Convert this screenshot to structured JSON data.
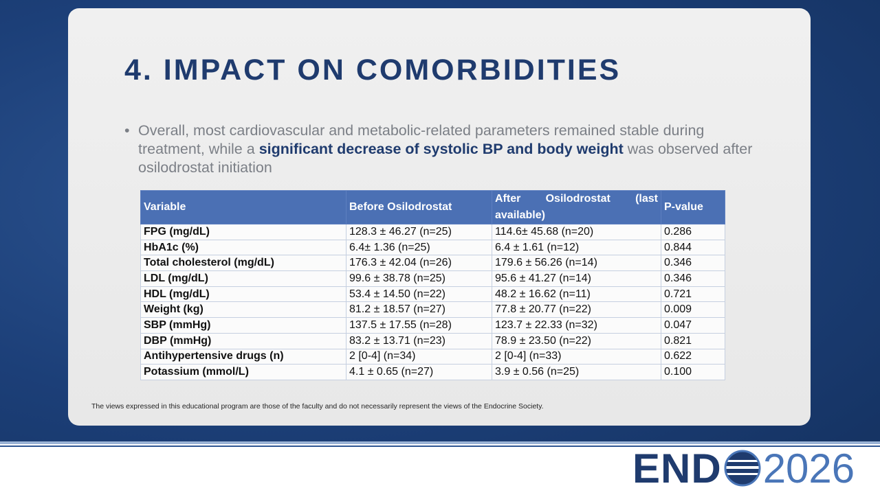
{
  "slide": {
    "title": "4. IMPACT ON COMORBIDITIES",
    "bullet": {
      "before": "Overall, most cardiovascular and metabolic-related parameters remained stable during treatment, while a",
      "bold": "significant decrease of systolic BP and body weight",
      "after": "was observed after osilodrostat initiation"
    },
    "table": {
      "headers": [
        "Variable",
        "Before Osilodrostat",
        "After Osilodrostat (last available)",
        "P-value"
      ],
      "rows": [
        [
          "FPG (mg/dL)",
          "128.3 ± 46.27 (n=25)",
          "114.6± 45.68 (n=20)",
          "0.286"
        ],
        [
          "HbA1c (%)",
          "6.4± 1.36 (n=25)",
          "6.4 ± 1.61 (n=12)",
          "0.844"
        ],
        [
          "Total cholesterol (mg/dL)",
          "176.3 ± 42.04 (n=26)",
          "179.6 ± 56.26 (n=14)",
          "0.346"
        ],
        [
          "LDL (mg/dL)",
          "99.6 ± 38.78 (n=25)",
          "95.6 ± 41.27 (n=14)",
          "0.346"
        ],
        [
          "HDL (mg/dL)",
          "53.4 ± 14.50 (n=22)",
          "48.2 ± 16.62 (n=11)",
          "0.721"
        ],
        [
          "Weight (kg)",
          "81.2 ± 18.57 (n=27)",
          "77.8 ± 20.77 (n=22)",
          "0.009"
        ],
        [
          "SBP (mmHg)",
          "137.5 ± 17.55 (n=28)",
          "123.7 ± 22.33 (n=32)",
          "0.047"
        ],
        [
          "DBP (mmHg)",
          "83.2 ± 13.71 (n=23)",
          "78.9 ± 23.50 (n=22)",
          "0.821"
        ],
        [
          "Antihypertensive drugs (n)",
          "2 [0-4] (n=34)",
          "2 [0-4] (n=33)",
          "0.622"
        ],
        [
          "Potassium (mmol/L)",
          "4.1 ± 0.65 (n=27)",
          "3.9 ± 0.56 (n=25)",
          "0.100"
        ]
      ]
    },
    "disclaimer": "The views expressed in this educational program are those of the faculty and do not necessarily represent the views of the Endocrine Society.",
    "logo": {
      "word": "END",
      "year": "2026"
    }
  }
}
